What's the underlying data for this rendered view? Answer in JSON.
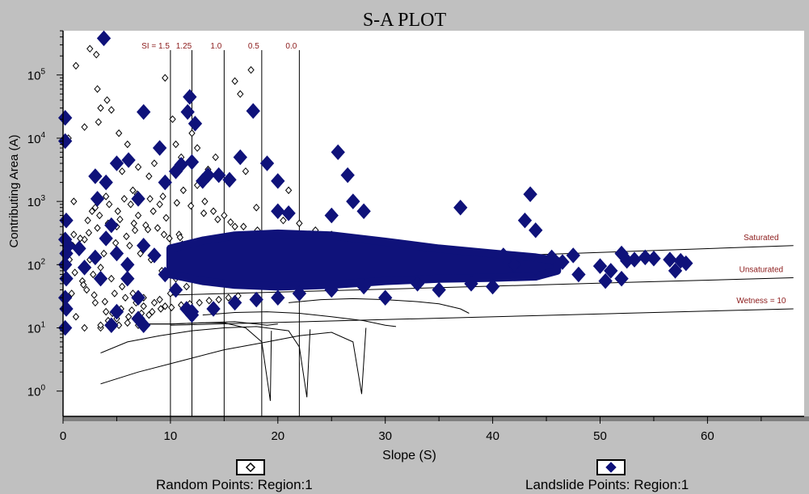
{
  "title": "S-A PLOT",
  "colors": {
    "background": "#c0c0c0",
    "plot_area": "#ffffff",
    "landslide_marker": "#0f127a",
    "annotation_text": "#8b1a1a"
  },
  "chart_data": {
    "type": "scatter",
    "title": "S-A PLOT",
    "xlabel": "Slope (S)",
    "ylabel": "Contributing Area (A)",
    "xlim": [
      0,
      69
    ],
    "ylim_log10": [
      -0.4,
      5.7
    ],
    "yscale": "log",
    "x_ticks": [
      "0",
      "10",
      "20",
      "30",
      "40",
      "50",
      "60"
    ],
    "y_ticks": [
      {
        "base": "10",
        "exp": "0"
      },
      {
        "base": "10",
        "exp": "1"
      },
      {
        "base": "10",
        "exp": "2"
      },
      {
        "base": "10",
        "exp": "3"
      },
      {
        "base": "10",
        "exp": "4"
      },
      {
        "base": "10",
        "exp": "5"
      }
    ],
    "si_lines": [
      {
        "label": "SI = 1.5",
        "x": 10
      },
      {
        "label": "1.25",
        "x": 12
      },
      {
        "label": "1.0",
        "x": 15
      },
      {
        "label": "0.5",
        "x": 18.5
      },
      {
        "label": "0.0",
        "x": 22
      }
    ],
    "wetness_lines": [
      {
        "label": "Saturated",
        "y_start": 90,
        "y_end": 200
      },
      {
        "label": "Unsaturated",
        "y_start": 33,
        "y_end": 62
      },
      {
        "label": "Wetness = 10",
        "y_start": 11,
        "y_end": 20
      }
    ],
    "series": [
      {
        "name": "Random Points: Region:1",
        "marker": "open-diamond",
        "points": [
          [
            1.2,
            140000
          ],
          [
            2.5,
            260000
          ],
          [
            3.1,
            210000
          ],
          [
            3.5,
            30000
          ],
          [
            3.2,
            60000
          ],
          [
            4.5,
            28000
          ],
          [
            5.2,
            12000
          ],
          [
            6,
            8000
          ],
          [
            2,
            15000
          ],
          [
            3.3,
            18000
          ],
          [
            4.1,
            40000
          ],
          [
            5.5,
            3000
          ],
          [
            6.5,
            1500
          ],
          [
            8,
            2500
          ],
          [
            9,
            900
          ],
          [
            7,
            600
          ],
          [
            5,
            400
          ],
          [
            4,
            1200
          ],
          [
            3,
            800
          ],
          [
            2,
            250
          ],
          [
            1,
            300
          ],
          [
            1.5,
            180
          ],
          [
            2.5,
            120
          ],
          [
            3.5,
            90
          ],
          [
            4.5,
            60
          ],
          [
            5.5,
            45
          ],
          [
            6.5,
            35
          ],
          [
            7.5,
            30
          ],
          [
            8.5,
            25
          ],
          [
            9.5,
            22
          ],
          [
            2.2,
            40
          ],
          [
            3,
            25
          ],
          [
            4,
            18
          ],
          [
            5,
            14
          ],
          [
            6,
            12
          ],
          [
            7,
            11
          ],
          [
            3.5,
            10
          ],
          [
            4.2,
            13
          ],
          [
            1.8,
            55
          ],
          [
            2.8,
            70
          ],
          [
            0.8,
            35
          ],
          [
            6.2,
            200
          ],
          [
            7.2,
            150
          ],
          [
            8.2,
            120
          ],
          [
            9.2,
            80
          ],
          [
            10.5,
            60
          ],
          [
            11.5,
            45
          ],
          [
            10,
            35
          ],
          [
            9,
            28
          ],
          [
            8,
            16
          ],
          [
            7.5,
            22
          ],
          [
            6.8,
            25
          ],
          [
            5.8,
            30
          ],
          [
            4.8,
            35
          ],
          [
            9.5,
            90000
          ],
          [
            16,
            80000
          ],
          [
            17.5,
            120000
          ],
          [
            16.5,
            50000
          ],
          [
            12,
            12000
          ],
          [
            10.5,
            8000
          ],
          [
            11,
            5000
          ],
          [
            8.5,
            4000
          ],
          [
            7,
            3500
          ],
          [
            9.8,
            2000
          ],
          [
            11.2,
            1500
          ],
          [
            12.5,
            1800
          ],
          [
            13.2,
            1000
          ],
          [
            14,
            700
          ],
          [
            15,
            600
          ],
          [
            16,
            400
          ],
          [
            17.5,
            300
          ],
          [
            19,
            250
          ],
          [
            12.5,
            7000
          ],
          [
            14.2,
            5000
          ],
          [
            17,
            3000
          ],
          [
            19,
            4000
          ],
          [
            21,
            1500
          ],
          [
            10.2,
            20000
          ],
          [
            13.5,
            3200
          ],
          [
            18,
            800
          ],
          [
            20.5,
            500
          ],
          [
            22,
            450
          ],
          [
            23.5,
            350
          ],
          [
            25,
            300
          ],
          [
            1.2,
            15
          ],
          [
            2,
            10
          ],
          [
            3.5,
            11
          ],
          [
            5.2,
            11
          ],
          [
            6.1,
            15
          ],
          [
            1,
            1000
          ],
          [
            0.5,
            10000
          ],
          [
            2.7,
            700
          ],
          [
            4.3,
            900
          ],
          [
            5.7,
            1100
          ],
          [
            6.9,
            1300
          ],
          [
            8.4,
            700
          ],
          [
            9.6,
            550
          ],
          [
            10.8,
            300
          ],
          [
            12.2,
            200
          ],
          [
            13.4,
            160
          ],
          [
            14.8,
            130
          ],
          [
            3.8,
            150
          ],
          [
            4.9,
            220
          ],
          [
            5.9,
            280
          ],
          [
            6.7,
            350
          ],
          [
            7.7,
            420
          ],
          [
            8.8,
            380
          ],
          [
            9.9,
            260
          ],
          [
            11.1,
            210
          ],
          [
            12.4,
            170
          ],
          [
            2.3,
            500
          ],
          [
            3.4,
            600
          ],
          [
            5.1,
            700
          ],
          [
            6.3,
            900
          ],
          [
            8.1,
            1100
          ],
          [
            9.3,
            1200
          ],
          [
            10.6,
            950
          ],
          [
            11.9,
            850
          ],
          [
            13.1,
            650
          ],
          [
            14.4,
            520
          ],
          [
            15.6,
            470
          ],
          [
            16.8,
            400
          ],
          [
            18.1,
            350
          ],
          [
            19.3,
            300
          ],
          [
            20.6,
            280
          ],
          [
            21.8,
            250
          ],
          [
            23.1,
            220
          ],
          [
            24.3,
            200
          ],
          [
            25.6,
            190
          ],
          [
            26.8,
            180
          ],
          [
            28,
            170
          ],
          [
            4.6,
            17
          ],
          [
            5.4,
            20
          ],
          [
            6.4,
            19
          ],
          [
            7.3,
            17
          ],
          [
            8.3,
            18
          ],
          [
            9.1,
            20
          ],
          [
            10.1,
            21
          ],
          [
            11,
            23
          ],
          [
            11.8,
            24
          ],
          [
            12.7,
            25
          ],
          [
            13.6,
            27
          ],
          [
            14.5,
            28
          ],
          [
            15.4,
            30
          ],
          [
            16.3,
            32
          ],
          [
            3.9,
            26
          ],
          [
            2.9,
            33
          ],
          [
            1.9,
            48
          ],
          [
            1.1,
            75
          ],
          [
            0.6,
            120
          ],
          [
            0.9,
            200
          ],
          [
            1.6,
            260
          ],
          [
            2.4,
            320
          ],
          [
            3.2,
            380
          ],
          [
            4.2,
            450
          ],
          [
            5.3,
            520
          ],
          [
            6.6,
            450
          ],
          [
            7.9,
            360
          ],
          [
            9.4,
            300
          ],
          [
            10.9,
            270
          ]
        ]
      },
      {
        "name": "Landslide Points: Region:1",
        "marker": "filled-diamond",
        "points": [
          [
            3.8,
            380000
          ],
          [
            11.8,
            45000
          ],
          [
            17.7,
            27000
          ],
          [
            11.6,
            26000
          ],
          [
            7.5,
            26000
          ],
          [
            12.3,
            17000
          ],
          [
            0.2,
            21000
          ],
          [
            0.2,
            9000
          ],
          [
            9,
            7000
          ],
          [
            25.6,
            6000
          ],
          [
            16.5,
            5000
          ],
          [
            6.1,
            4500
          ],
          [
            5,
            4000
          ],
          [
            19,
            4000
          ],
          [
            11,
            3800
          ],
          [
            10.5,
            3000
          ],
          [
            12,
            4200
          ],
          [
            13.5,
            2600
          ],
          [
            14.5,
            2600
          ],
          [
            26.5,
            2600
          ],
          [
            3,
            2500
          ],
          [
            13,
            2100
          ],
          [
            20,
            2100
          ],
          [
            4,
            2000
          ],
          [
            9.5,
            2000
          ],
          [
            15.5,
            2200
          ],
          [
            43.5,
            1300
          ],
          [
            3.2,
            1100
          ],
          [
            7,
            1100
          ],
          [
            27,
            1000
          ],
          [
            20,
            700
          ],
          [
            21,
            650
          ],
          [
            28,
            700
          ],
          [
            37,
            800
          ],
          [
            25,
            600
          ],
          [
            43,
            500
          ],
          [
            44,
            350
          ],
          [
            0.3,
            500
          ],
          [
            0.2,
            250
          ],
          [
            0.5,
            200
          ],
          [
            0.3,
            150
          ],
          [
            0.2,
            100
          ],
          [
            0.3,
            60
          ],
          [
            0.2,
            30
          ],
          [
            0.3,
            20
          ],
          [
            0.2,
            10
          ],
          [
            1.5,
            180
          ],
          [
            2,
            90
          ],
          [
            3,
            130
          ],
          [
            4,
            260
          ],
          [
            4.5,
            420
          ],
          [
            5,
            150
          ],
          [
            6,
            60
          ],
          [
            7,
            30
          ],
          [
            5,
            18
          ],
          [
            7,
            14
          ],
          [
            4.5,
            11
          ],
          [
            7.5,
            11
          ],
          [
            3.5,
            60
          ],
          [
            6,
            100
          ],
          [
            7.5,
            200
          ],
          [
            8.5,
            140
          ],
          [
            9.5,
            70
          ],
          [
            10.5,
            40
          ],
          [
            11.5,
            20
          ],
          [
            12,
            16
          ],
          [
            45.5,
            130
          ],
          [
            46.5,
            110
          ],
          [
            47.5,
            140
          ],
          [
            44,
            90
          ],
          [
            42,
            100
          ],
          [
            41,
            140
          ],
          [
            48,
            70
          ],
          [
            50,
            95
          ],
          [
            51,
            80
          ],
          [
            52,
            150
          ],
          [
            52.5,
            115
          ],
          [
            53.2,
            120
          ],
          [
            54.2,
            130
          ],
          [
            55,
            125
          ],
          [
            56.5,
            120
          ],
          [
            57.5,
            115
          ],
          [
            50.5,
            55
          ],
          [
            52,
            60
          ],
          [
            57,
            80
          ],
          [
            58,
            105
          ],
          [
            38,
            50
          ],
          [
            40,
            45
          ],
          [
            35,
            40
          ],
          [
            33,
            50
          ],
          [
            30,
            30
          ],
          [
            28,
            45
          ],
          [
            25,
            40
          ],
          [
            22,
            35
          ],
          [
            20,
            30
          ],
          [
            18,
            28
          ],
          [
            16,
            25
          ],
          [
            14,
            20
          ],
          [
            12,
            18
          ]
        ]
      }
    ]
  },
  "legend": {
    "random_label": "Random Points: Region:1",
    "landslide_label": "Landslide Points: Region:1"
  }
}
